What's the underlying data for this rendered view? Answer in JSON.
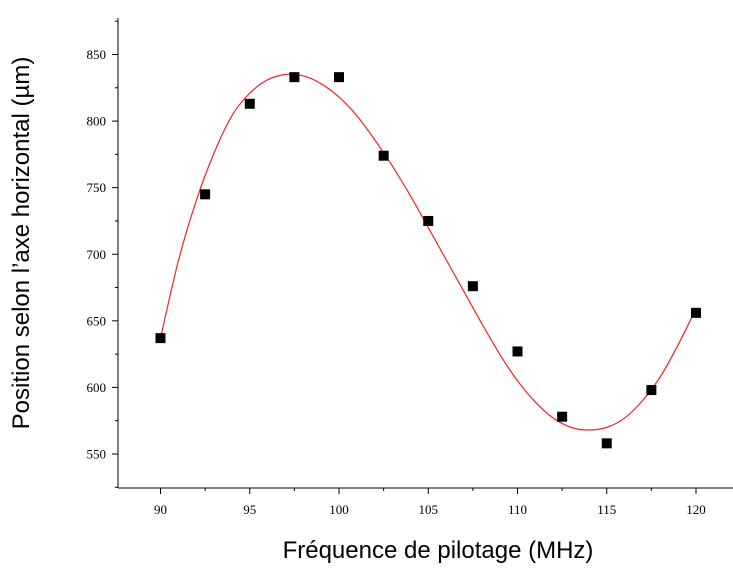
{
  "chart_data": {
    "type": "scatter",
    "title": "",
    "xlabel": "Fréquence de pilotage (MHz)",
    "ylabel": "Position selon l’axe horizontal (µm)",
    "xlim": [
      87.5,
      122.5
    ],
    "ylim": [
      520,
      890
    ],
    "x_ticks": [
      90,
      95,
      100,
      105,
      110,
      115,
      120
    ],
    "y_ticks": [
      550,
      600,
      650,
      700,
      750,
      800,
      850
    ],
    "grid": false,
    "legend": "none",
    "series": [
      {
        "kind": "points",
        "marker": "square",
        "color": "#000000",
        "x": [
          90,
          92.5,
          95,
          97.5,
          100,
          102.5,
          105,
          107.5,
          110,
          112.5,
          115,
          117.5,
          120
        ],
        "y": [
          637,
          745,
          813,
          833,
          833,
          774,
          725,
          676,
          627,
          578,
          558,
          598,
          656
        ]
      },
      {
        "kind": "fit",
        "color": "#e8262b",
        "x": [
          90,
          91,
          92,
          93,
          94,
          95,
          96,
          97,
          98,
          99,
          100,
          101,
          102,
          103,
          104,
          105,
          106,
          107,
          108,
          109,
          110,
          111,
          112,
          113,
          114,
          115,
          116,
          117,
          118,
          119,
          120
        ],
        "y": [
          637,
          695,
          740,
          776,
          804,
          821,
          831,
          835,
          834,
          828,
          818,
          804,
          786,
          766,
          744,
          720,
          696,
          672,
          648,
          625,
          605,
          589,
          577,
          570,
          568,
          570,
          577,
          590,
          608,
          632,
          659
        ]
      }
    ]
  }
}
